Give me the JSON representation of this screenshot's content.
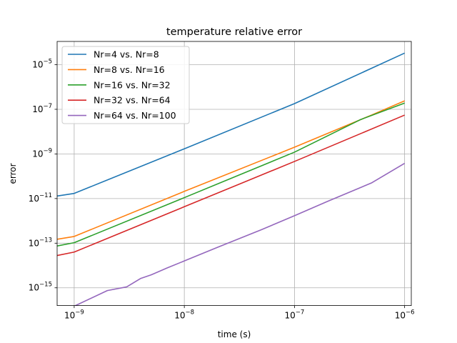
{
  "chart_data": {
    "type": "line",
    "title": "temperature relative error",
    "xlabel": "time (s)",
    "ylabel": "error",
    "xscale": "log",
    "yscale": "log",
    "xlim": [
      7e-10,
      1.15e-06
    ],
    "ylim": [
      1.6e-16,
      0.00011
    ],
    "grid": true,
    "legend": "upper-left",
    "x_ticks": [
      {
        "value": 1e-09,
        "base": "10",
        "exp": "−9"
      },
      {
        "value": 1e-08,
        "base": "10",
        "exp": "−8"
      },
      {
        "value": 1e-07,
        "base": "10",
        "exp": "−7"
      },
      {
        "value": 1e-06,
        "base": "10",
        "exp": "−6"
      }
    ],
    "y_ticks": [
      {
        "value": 1e-15,
        "base": "10",
        "exp": "−15"
      },
      {
        "value": 1e-13,
        "base": "10",
        "exp": "−13"
      },
      {
        "value": 1e-11,
        "base": "10",
        "exp": "−11"
      },
      {
        "value": 1e-09,
        "base": "10",
        "exp": "−9"
      },
      {
        "value": 1e-07,
        "base": "10",
        "exp": "−7"
      },
      {
        "value": 1e-05,
        "base": "10",
        "exp": "−5"
      }
    ],
    "series": [
      {
        "name": "Nr=4 vs. Nr=8",
        "color": "#1f77b4",
        "points": [
          [
            7e-10,
            1.3e-11
          ],
          [
            1e-09,
            1.7e-11
          ],
          [
            1e-08,
            1.7e-09
          ],
          [
            1e-07,
            1.8e-07
          ],
          [
            1e-06,
            3.3e-05
          ]
        ]
      },
      {
        "name": "Nr=8 vs. Nr=16",
        "color": "#ff7f0e",
        "points": [
          [
            7e-10,
            1.5e-13
          ],
          [
            1e-09,
            2e-13
          ],
          [
            1e-08,
            2.1e-11
          ],
          [
            1e-07,
            2e-09
          ],
          [
            5e-07,
            5.5e-08
          ],
          [
            1e-06,
            2.4e-07
          ]
        ]
      },
      {
        "name": "Nr=16 vs. Nr=32",
        "color": "#2ca02c",
        "points": [
          [
            7e-10,
            7.5e-14
          ],
          [
            1e-09,
            1.05e-13
          ],
          [
            1e-08,
            1.1e-11
          ],
          [
            1e-07,
            1.2e-09
          ],
          [
            4e-07,
            3.5e-08
          ],
          [
            1e-06,
            1.9e-07
          ]
        ]
      },
      {
        "name": "Nr=32 vs. Nr=64",
        "color": "#d62728",
        "points": [
          [
            7e-10,
            2.8e-14
          ],
          [
            1e-09,
            4e-14
          ],
          [
            1e-08,
            4.3e-12
          ],
          [
            1e-07,
            4.6e-10
          ],
          [
            1e-06,
            5.5e-08
          ]
        ]
      },
      {
        "name": "Nr=64 vs. Nr=100",
        "color": "#9467bd",
        "points": [
          [
            7e-10,
            1.1e-16
          ],
          [
            1e-09,
            1.5e-16
          ],
          [
            2e-09,
            7.5e-16
          ],
          [
            3e-09,
            1.1e-15
          ],
          [
            4e-09,
            2.6e-15
          ],
          [
            5e-09,
            3.8e-15
          ],
          [
            7e-09,
            7.8e-15
          ],
          [
            1e-08,
            1.6e-14
          ],
          [
            2e-08,
            6.5e-14
          ],
          [
            5e-08,
            4e-13
          ],
          [
            1e-07,
            1.7e-12
          ],
          [
            2e-07,
            7.5e-12
          ],
          [
            5e-07,
            5e-11
          ],
          [
            1e-06,
            3.8e-10
          ]
        ]
      }
    ]
  }
}
